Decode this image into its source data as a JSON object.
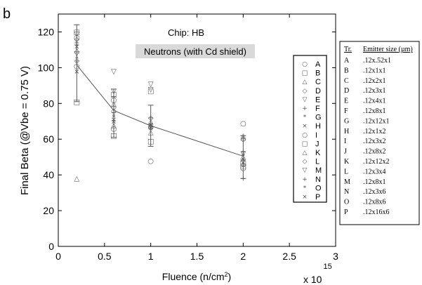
{
  "panel_label": "b",
  "chart_data": {
    "type": "scatter",
    "title": "",
    "annotation": "Chip: HB",
    "subtitle": "Neutrons (with Cd shield)",
    "xlabel": "Fluence (n/cm",
    "xlabel_sup": "2",
    "xlabel_close": ")",
    "x_multiplier": "x 10",
    "x_multiplier_exp": "15",
    "ylabel": "Final Beta (@Vbe = 0.75 V)",
    "xlim": [
      0,
      3
    ],
    "ylim": [
      0,
      130
    ],
    "xticks": [
      0,
      0.5,
      1,
      1.5,
      2,
      2.5,
      3
    ],
    "xtick_labels": [
      "0",
      "0.5",
      "1",
      "1.5",
      "2",
      "2.5",
      "3"
    ],
    "yticks": [
      0,
      20,
      40,
      60,
      80,
      100,
      120
    ],
    "ytick_labels": [
      "0",
      "20",
      "40",
      "60",
      "80",
      "100",
      "120"
    ],
    "grid": false,
    "legend_position": "right-inside",
    "series": [
      {
        "name": "A",
        "marker": "○",
        "x": [
          0.2,
          0.6,
          1,
          2
        ],
        "y": [
          101,
          82,
          67,
          44
        ]
      },
      {
        "name": "B",
        "marker": "□",
        "x": [
          0.2,
          0.6,
          1,
          2
        ],
        "y": [
          120,
          85,
          87,
          45
        ]
      },
      {
        "name": "C",
        "marker": "△",
        "x": [
          0.2,
          0.6,
          1,
          2
        ],
        "y": [
          38,
          80,
          70,
          61
        ]
      },
      {
        "name": "D",
        "marker": "◇",
        "x": [
          0.2,
          0.6,
          1,
          2
        ],
        "y": [
          116,
          78,
          72,
          60
        ]
      },
      {
        "name": "E",
        "marker": "▽",
        "x": [
          0.2,
          0.6,
          1,
          2
        ],
        "y": [
          108,
          98,
          91,
          52
        ]
      },
      {
        "name": "F",
        "marker": "+",
        "x": [
          0.2,
          0.6,
          1,
          2
        ],
        "y": [
          113,
          75,
          69,
          53
        ]
      },
      {
        "name": "G",
        "marker": "*",
        "x": [
          0.2,
          0.6,
          1,
          2
        ],
        "y": [
          105,
          73,
          66,
          51
        ]
      },
      {
        "name": "H",
        "marker": "×",
        "x": [
          0.2,
          0.6,
          1,
          2
        ],
        "y": [
          112,
          71,
          68,
          47
        ]
      },
      {
        "name": "I",
        "marker": "○",
        "x": [
          0.2,
          0.6,
          1,
          2
        ],
        "y": [
          117,
          66,
          48,
          69
        ]
      },
      {
        "name": "J",
        "marker": "□",
        "x": [
          0.2,
          0.6,
          1,
          2
        ],
        "y": [
          81,
          62,
          59,
          47
        ]
      },
      {
        "name": "K",
        "marker": "△",
        "x": [
          0.2,
          0.6,
          1,
          2
        ],
        "y": [
          110,
          68,
          64,
          62
        ]
      },
      {
        "name": "L",
        "marker": "◇",
        "x": [
          0.2,
          0.6,
          1,
          2
        ],
        "y": [
          104,
          76,
          67,
          46
        ]
      },
      {
        "name": "M",
        "marker": "▽",
        "x": [
          0.2,
          0.6,
          1,
          2
        ],
        "y": [
          119,
          87,
          88,
          48
        ]
      },
      {
        "name": "N",
        "marker": "+",
        "x": [
          0.2,
          0.6,
          1,
          2
        ],
        "y": [
          114,
          84,
          72,
          38
        ]
      },
      {
        "name": "O",
        "marker": "*",
        "x": [
          0.2,
          0.6,
          1,
          2
        ],
        "y": [
          103,
          72,
          65,
          50
        ]
      },
      {
        "name": "P",
        "marker": "×",
        "x": [
          0.2,
          0.6,
          1,
          2
        ],
        "y": [
          98,
          70,
          67,
          49
        ]
      }
    ],
    "mean_line": {
      "x": [
        0.2,
        0.6,
        1,
        2
      ],
      "y": [
        101.5,
        76,
        67.5,
        50.5
      ],
      "err_low": [
        81,
        61,
        56,
        38
      ],
      "err_high": [
        124,
        88,
        79,
        62
      ]
    }
  },
  "emitter_table": {
    "headers": [
      "Tr.",
      "Emitter size (µm)"
    ],
    "rows": [
      [
        "A",
        ".12x.52x1"
      ],
      [
        "B",
        ".12x1x1"
      ],
      [
        "C",
        ".12x2x1"
      ],
      [
        "D",
        ".12x3x1"
      ],
      [
        "E",
        ".12x4x1"
      ],
      [
        "F",
        ".12x8x1"
      ],
      [
        "G",
        ".12x12x1"
      ],
      [
        "H",
        ".12x1x2"
      ],
      [
        "I",
        ".12x3x2"
      ],
      [
        "J",
        ".12x8x2"
      ],
      [
        "K",
        ".12x12x2"
      ],
      [
        "L",
        ".12x3x4"
      ],
      [
        "M",
        ".12x8x1"
      ],
      [
        "N",
        ".12x3x6"
      ],
      [
        "O",
        ".12x8x6"
      ],
      [
        "P",
        ".12x16x6"
      ]
    ]
  }
}
